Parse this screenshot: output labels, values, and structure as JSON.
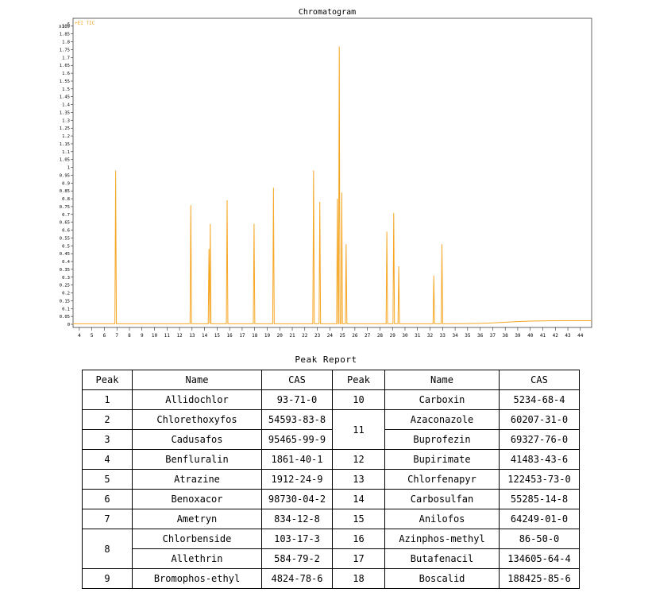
{
  "chart_data": {
    "type": "line",
    "title": "Chromatogram",
    "legend_label": "+EI TIC",
    "y_exponent_label": "x10",
    "y_exponent_power": "6",
    "xlim": [
      3.5,
      44.9
    ],
    "ylim": [
      0,
      1.95
    ],
    "x_ticks": [
      "4",
      "5",
      "6",
      "7",
      "8",
      "9",
      "10",
      "11",
      "12",
      "13",
      "14",
      "15",
      "16",
      "17",
      "18",
      "19",
      "20",
      "21",
      "22",
      "23",
      "24",
      "25",
      "26",
      "27",
      "28",
      "29",
      "30",
      "31",
      "32",
      "33",
      "34",
      "35",
      "36",
      "37",
      "38",
      "39",
      "40",
      "41",
      "42",
      "43",
      "44"
    ],
    "y_ticks": [
      "0",
      "0.05",
      "0.1",
      "0.15",
      "0.2",
      "0.25",
      "0.3",
      "0.35",
      "0.4",
      "0.45",
      "0.5",
      "0.55",
      "0.6",
      "0.65",
      "0.7",
      "0.75",
      "0.8",
      "0.85",
      "0.9",
      "0.95",
      "1",
      "1.05",
      "1.1",
      "1.15",
      "1.2",
      "1.25",
      "1.3",
      "1.35",
      "1.4",
      "1.45",
      "1.5",
      "1.55",
      "1.6",
      "1.65",
      "1.7",
      "1.75",
      "1.8",
      "1.85",
      "1.9"
    ],
    "series": [
      {
        "peaks": [
          {
            "x": 6.9,
            "y": 0.98
          },
          {
            "x": 12.9,
            "y": 0.76
          },
          {
            "x": 14.35,
            "y": 0.48
          },
          {
            "x": 14.45,
            "y": 0.64
          },
          {
            "x": 15.8,
            "y": 0.79
          },
          {
            "x": 17.95,
            "y": 0.64
          },
          {
            "x": 19.5,
            "y": 0.87
          },
          {
            "x": 22.7,
            "y": 0.98
          },
          {
            "x": 23.2,
            "y": 0.78
          },
          {
            "x": 24.6,
            "y": 0.8
          },
          {
            "x": 24.75,
            "y": 1.77
          },
          {
            "x": 24.95,
            "y": 0.84
          },
          {
            "x": 25.3,
            "y": 0.51
          },
          {
            "x": 28.55,
            "y": 0.59
          },
          {
            "x": 29.1,
            "y": 0.71
          },
          {
            "x": 29.5,
            "y": 0.37
          },
          {
            "x": 32.3,
            "y": 0.31
          },
          {
            "x": 32.95,
            "y": 0.51
          }
        ]
      }
    ],
    "color": "#f5a623",
    "grid": false
  },
  "report": {
    "title": "Peak Report",
    "headers": [
      "Peak",
      "Name",
      "CAS",
      "Peak",
      "Name",
      "CAS"
    ],
    "left": [
      {
        "peak": "1",
        "names": [
          "Allidochlor"
        ],
        "cas": [
          "93-71-0"
        ]
      },
      {
        "peak": "2",
        "names": [
          "Chlorethoxyfos"
        ],
        "cas": [
          "54593-83-8"
        ]
      },
      {
        "peak": "3",
        "names": [
          "Cadusafos"
        ],
        "cas": [
          "95465-99-9"
        ]
      },
      {
        "peak": "4",
        "names": [
          "Benfluralin"
        ],
        "cas": [
          "1861-40-1"
        ]
      },
      {
        "peak": "5",
        "names": [
          "Atrazine"
        ],
        "cas": [
          "1912-24-9"
        ]
      },
      {
        "peak": "6",
        "names": [
          "Benoxacor"
        ],
        "cas": [
          "98730-04-2"
        ]
      },
      {
        "peak": "7",
        "names": [
          "Ametryn"
        ],
        "cas": [
          "834-12-8"
        ]
      },
      {
        "peak": "8",
        "names": [
          "Chlorbenside",
          "Allethrin"
        ],
        "cas": [
          "103-17-3",
          "584-79-2"
        ]
      },
      {
        "peak": "9",
        "names": [
          "Bromophos-ethyl"
        ],
        "cas": [
          "4824-78-6"
        ]
      }
    ],
    "right": [
      {
        "peak": "10",
        "names": [
          "Carboxin"
        ],
        "cas": [
          "5234-68-4"
        ]
      },
      {
        "peak": "11",
        "names": [
          "Azaconazole",
          "Buprofezin"
        ],
        "cas": [
          "60207-31-0",
          "69327-76-0"
        ]
      },
      {
        "peak": "12",
        "names": [
          "Bupirimate"
        ],
        "cas": [
          "41483-43-6"
        ]
      },
      {
        "peak": "13",
        "names": [
          "Chlorfenapyr"
        ],
        "cas": [
          "122453-73-0"
        ]
      },
      {
        "peak": "14",
        "names": [
          "Carbosulfan"
        ],
        "cas": [
          "55285-14-8"
        ]
      },
      {
        "peak": "15",
        "names": [
          "Anilofos"
        ],
        "cas": [
          "64249-01-0"
        ]
      },
      {
        "peak": "16",
        "names": [
          "Azinphos-methyl"
        ],
        "cas": [
          "86-50-0"
        ]
      },
      {
        "peak": "17",
        "names": [
          "Butafenacil"
        ],
        "cas": [
          "134605-64-4"
        ]
      },
      {
        "peak": "18",
        "names": [
          "Boscalid"
        ],
        "cas": [
          "188425-85-6"
        ]
      }
    ]
  }
}
